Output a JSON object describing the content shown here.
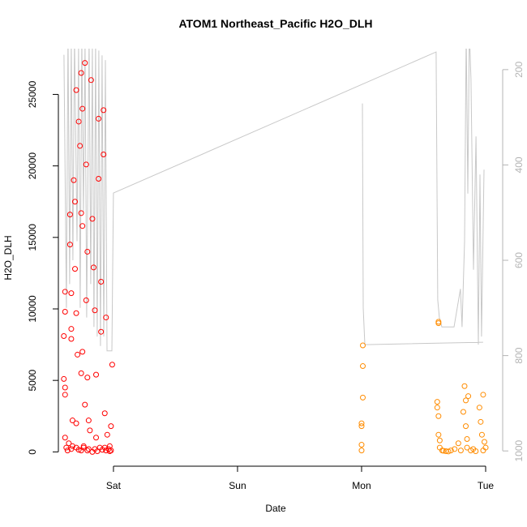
{
  "chart_data": {
    "type": "scatter",
    "title": "ATOM1 Northeast_Pacific H2O_DLH",
    "xlabel": "Date",
    "ylabel": "H2O_DLH",
    "xlim": [
      0.556,
      4.085
    ],
    "xticks": [
      {
        "value": 1,
        "label": "Sat"
      },
      {
        "value": 2,
        "label": "Sun"
      },
      {
        "value": 3,
        "label": "Mon"
      },
      {
        "value": 4,
        "label": "Tue"
      }
    ],
    "ylim": [
      -1000,
      28200
    ],
    "yticks": [
      0,
      5000,
      10000,
      15000,
      20000,
      25000
    ],
    "y2lim": [
      1032,
      156
    ],
    "y2ticks": [
      200,
      400,
      600,
      800,
      1000
    ],
    "y2color": "#b4b4b4",
    "series": [
      {
        "color": "#ff0000",
        "x": [
          0.61,
          0.61,
          0.6,
          0.6,
          0.61,
          0.61,
          0.61,
          0.62,
          0.63,
          0.65,
          0.65,
          0.66,
          0.66,
          0.66,
          0.67,
          0.67,
          0.7,
          0.69,
          0.69,
          0.7,
          0.71,
          0.7,
          0.72,
          0.73,
          0.74,
          0.74,
          0.74,
          0.75,
          0.75,
          0.75,
          0.76,
          0.77,
          0.78,
          0.78,
          0.79,
          0.79,
          0.8,
          0.8,
          0.82,
          0.83,
          0.84,
          0.85,
          0.86,
          0.86,
          0.88,
          0.88,
          0.9,
          0.9,
          0.92,
          0.92,
          0.93,
          0.93,
          0.94,
          0.95,
          0.99,
          0.98,
          0.97,
          0.98,
          0.64,
          0.66,
          0.7,
          0.72,
          0.74,
          0.76,
          0.79,
          0.83,
          0.85,
          0.87,
          0.89,
          0.91,
          0.94,
          0.96,
          0.97,
          0.68,
          0.77,
          0.81
        ],
        "values": [
          11200,
          9800,
          8100,
          5100,
          4500,
          4000,
          1000,
          300,
          100,
          16600,
          14500,
          11100,
          8600,
          7900,
          2200,
          400,
          25300,
          17500,
          12800,
          9700,
          6800,
          2000,
          23100,
          21400,
          26500,
          16700,
          5500,
          24000,
          15800,
          7000,
          300,
          27200,
          20100,
          10600,
          14000,
          5200,
          2200,
          200,
          26000,
          16300,
          12900,
          9900,
          5400,
          1000,
          23300,
          19100,
          11900,
          8400,
          23900,
          20800,
          2700,
          300,
          9400,
          1200,
          6100,
          1800,
          400,
          100,
          600,
          200,
          300,
          150,
          100,
          400,
          100,
          0,
          200,
          50,
          300,
          150,
          100,
          200,
          50,
          19000,
          3300,
          1500
        ]
      },
      {
        "color": "#ff8c00",
        "x": [
          3.01,
          3.01,
          3.01,
          3.0,
          3.0,
          3.0,
          3.0,
          3.62,
          3.62,
          3.61,
          3.61,
          3.62,
          3.62,
          3.63,
          3.63,
          3.65,
          3.68,
          3.72,
          3.75,
          3.78,
          3.8,
          3.82,
          3.83,
          3.84,
          3.84,
          3.85,
          3.86,
          3.85,
          3.88,
          3.92,
          3.95,
          3.96,
          3.97,
          3.98,
          3.99,
          4.0,
          3.98,
          3.7,
          3.66,
          3.9
        ],
        "values": [
          7450,
          6000,
          3800,
          2000,
          1800,
          500,
          100,
          9000,
          9100,
          3500,
          3100,
          2500,
          1200,
          800,
          300,
          100,
          50,
          100,
          200,
          600,
          100,
          2800,
          4600,
          3600,
          1800,
          900,
          3900,
          300,
          100,
          50,
          3100,
          2100,
          1200,
          4000,
          700,
          300,
          100,
          30,
          80,
          200
        ]
      },
      {
        "type": "line",
        "axis": "y2",
        "color": "#c8c8c8",
        "x": [
          0.601,
          0.621,
          0.634,
          0.647,
          0.66,
          0.673,
          0.686,
          0.706,
          0.719,
          0.732,
          0.745,
          0.758,
          0.771,
          0.784,
          0.804,
          0.817,
          0.83,
          0.843,
          0.856,
          0.869,
          0.882,
          0.895,
          0.908,
          0.922,
          0.935,
          0.948,
          0.961,
          0.974,
          0.987,
          1.0,
          3.601,
          3.614,
          3.627,
          3.647,
          3.732,
          3.745,
          3.797,
          3.81,
          3.83,
          3.843,
          3.856,
          3.869,
          3.882,
          3.902,
          3.922,
          3.941,
          3.954,
          3.967,
          3.987,
          null,
          3.007,
          3.013,
          3.026,
          3.98
        ],
        "values": [
          169,
          700,
          120,
          650,
          140,
          600,
          130,
          560,
          150,
          700,
          130,
          500,
          140,
          720,
          130,
          650,
          150,
          740,
          140,
          760,
          160,
          780,
          170,
          760,
          180,
          790,
          790,
          790,
          790,
          459,
          163,
          683,
          720,
          740,
          740,
          740,
          660,
          740,
          560,
          120,
          460,
          120,
          220,
          620,
          340,
          777,
          420,
          760,
          410,
          null,
          271,
          700,
          777,
          772
        ]
      }
    ]
  }
}
